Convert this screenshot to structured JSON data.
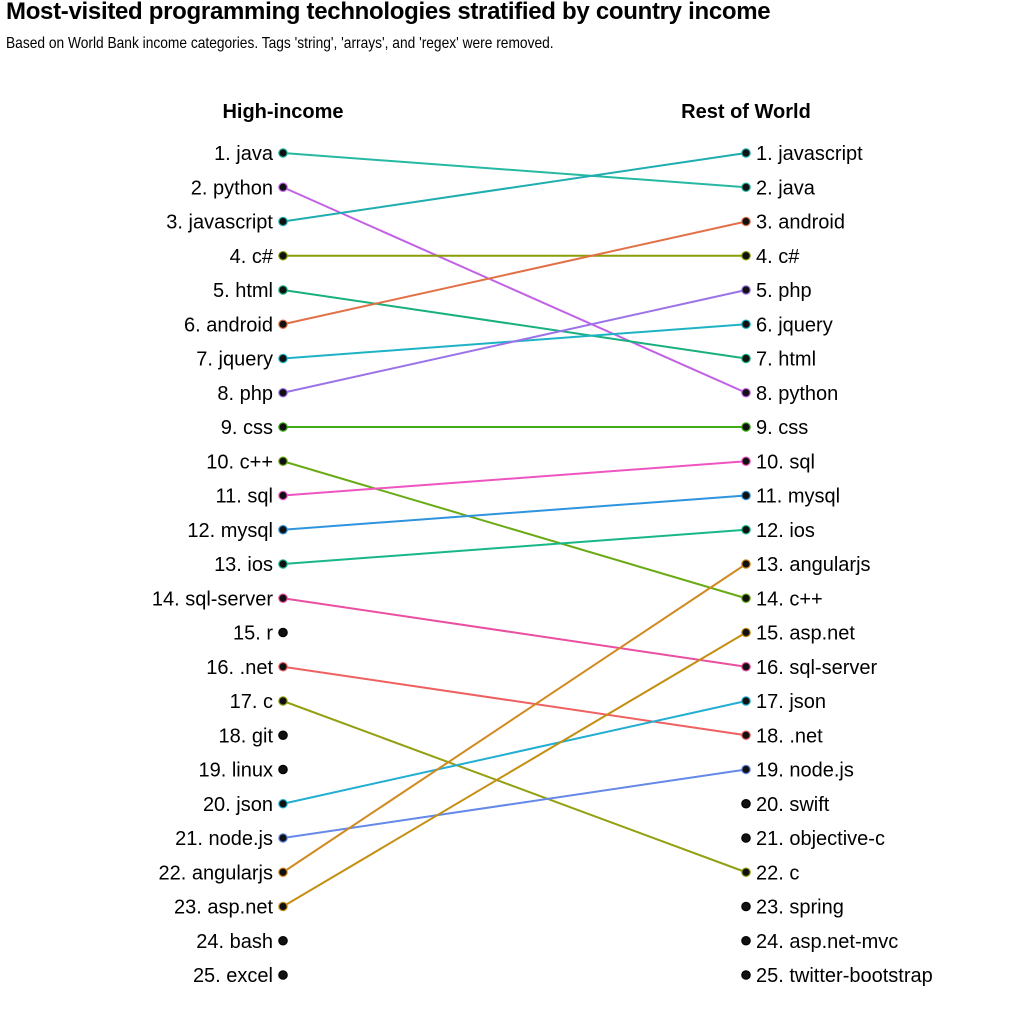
{
  "title": "Most-visited programming technologies stratified by country income",
  "subtitle": "Based on World Bank income categories. Tags 'string', 'arrays', and 'regex' were removed.",
  "chart_data": {
    "type": "slope",
    "columns": [
      "High-income",
      "Rest of World"
    ],
    "left_ranking": [
      "java",
      "python",
      "javascript",
      "c#",
      "html",
      "android",
      "jquery",
      "php",
      "css",
      "c++",
      "sql",
      "mysql",
      "ios",
      "sql-server",
      "r",
      ".net",
      "c",
      "git",
      "linux",
      "json",
      "node.js",
      "angularjs",
      "asp.net",
      "bash",
      "excel"
    ],
    "right_ranking": [
      "javascript",
      "java",
      "android",
      "c#",
      "php",
      "jquery",
      "html",
      "python",
      "css",
      "sql",
      "mysql",
      "ios",
      "angularjs",
      "c++",
      "asp.net",
      "sql-server",
      "json",
      ".net",
      "node.js",
      "swift",
      "objective-c",
      "c",
      "spring",
      "asp.net-mvc",
      "twitter-bootstrap"
    ],
    "colors": {
      "java": "#26b8a2",
      "python": "#c261e6",
      "javascript": "#1fadb0",
      "c#": "#8a9e06",
      "html": "#19b07f",
      "android": "#e27047",
      "jquery": "#1db3c5",
      "php": "#9b72e8",
      "css": "#40ad18",
      "c++": "#6aaa14",
      "sql": "#ef55c2",
      "mysql": "#2f94de",
      "ios": "#18b789",
      "sql-server": "#ea4fa0",
      "net": "#ef6060",
      "c": "#93a012",
      "json": "#22aed1",
      "node.js": "#6589e8",
      "angularjs": "#d2891f",
      "asp.net": "#c48e10"
    }
  }
}
